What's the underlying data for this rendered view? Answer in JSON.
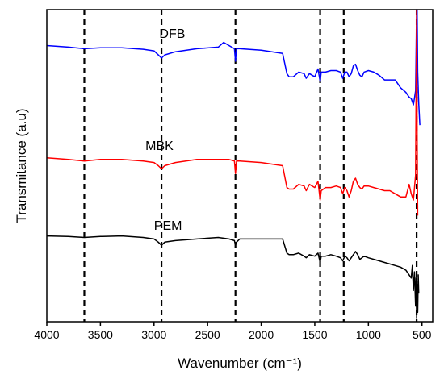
{
  "chart_data": {
    "type": "line",
    "title": "",
    "xlabel": "Wavenumber (cm⁻¹)",
    "ylabel": "Transmitance (a.u)",
    "xlim": [
      4000,
      400
    ],
    "x_reversed": true,
    "ylim": [
      0,
      100
    ],
    "y_ticks_shown": false,
    "grid": false,
    "legend": "none",
    "x_ticks": [
      4000,
      3500,
      3000,
      2500,
      2000,
      1500,
      1000,
      500
    ],
    "x_tick_labels": [
      "4000",
      "3500",
      "3000",
      "2500",
      "2000",
      "1500",
      "1000",
      "500"
    ],
    "reference_lines": [
      3650,
      2930,
      2240,
      1450,
      1230,
      550
    ],
    "series": [
      {
        "name": "DFB",
        "color": "#0000ff",
        "x": [
          4000,
          3800,
          3650,
          3500,
          3300,
          3100,
          3000,
          2960,
          2930,
          2900,
          2800,
          2600,
          2400,
          2350,
          2300,
          2250,
          2240,
          2230,
          2200,
          2000,
          1800,
          1760,
          1740,
          1700,
          1650,
          1600,
          1580,
          1550,
          1500,
          1470,
          1450,
          1440,
          1400,
          1350,
          1300,
          1260,
          1240,
          1220,
          1200,
          1180,
          1160,
          1140,
          1120,
          1100,
          1080,
          1060,
          1040,
          1000,
          950,
          900,
          850,
          800,
          750,
          700,
          650,
          620,
          600,
          580,
          560,
          550,
          545,
          540,
          530,
          520
        ],
        "y": [
          88.5,
          88.0,
          87.5,
          87.8,
          87.8,
          87.3,
          86.8,
          85.5,
          84.5,
          85.5,
          86.5,
          87.5,
          88.0,
          89.5,
          88.5,
          87.5,
          83.5,
          87.5,
          87.5,
          87.0,
          86.0,
          79.5,
          78.5,
          78.5,
          80.0,
          79.5,
          78.0,
          79.5,
          78.5,
          81.0,
          77.0,
          80.0,
          80.0,
          80.5,
          80.5,
          80.0,
          78.0,
          80.0,
          80.0,
          78.5,
          79.5,
          82.0,
          82.5,
          80.5,
          79.0,
          78.5,
          80.0,
          80.5,
          80.0,
          79.0,
          77.5,
          77.5,
          77.5,
          75.0,
          73.5,
          72.0,
          71.5,
          69.5,
          74.0,
          100.0,
          100.0,
          80.0,
          70.0,
          63.0
        ]
      },
      {
        "name": "MBK",
        "color": "#ff0000",
        "x": [
          4000,
          3800,
          3650,
          3500,
          3300,
          3100,
          3000,
          2960,
          2930,
          2900,
          2800,
          2600,
          2400,
          2300,
          2250,
          2240,
          2230,
          2200,
          2000,
          1800,
          1760,
          1740,
          1700,
          1650,
          1600,
          1580,
          1550,
          1500,
          1470,
          1450,
          1440,
          1400,
          1350,
          1300,
          1260,
          1240,
          1220,
          1200,
          1180,
          1160,
          1140,
          1120,
          1100,
          1080,
          1060,
          1040,
          1000,
          950,
          900,
          850,
          800,
          750,
          700,
          650,
          620,
          600,
          580,
          560,
          550,
          545,
          540
        ],
        "y": [
          52.5,
          52.0,
          51.5,
          52.0,
          52.0,
          51.5,
          51.0,
          50.0,
          49.0,
          50.0,
          51.0,
          52.0,
          52.0,
          52.0,
          51.5,
          47.5,
          51.5,
          51.5,
          51.0,
          50.0,
          43.0,
          42.5,
          42.5,
          44.0,
          43.5,
          42.0,
          44.0,
          43.0,
          45.0,
          39.0,
          42.0,
          43.0,
          43.0,
          43.5,
          43.0,
          41.0,
          43.0,
          42.0,
          40.0,
          42.0,
          45.0,
          46.0,
          44.0,
          43.0,
          42.5,
          43.5,
          43.5,
          43.0,
          42.5,
          42.0,
          42.0,
          41.0,
          40.0,
          40.0,
          44.0,
          41.0,
          39.0,
          47.0,
          100.0,
          60.0,
          34.0
        ]
      },
      {
        "name": "PEM",
        "color": "#000000",
        "x": [
          4000,
          3800,
          3650,
          3500,
          3300,
          3100,
          3000,
          2960,
          2930,
          2900,
          2800,
          2600,
          2400,
          2300,
          2250,
          2240,
          2230,
          2200,
          2000,
          1800,
          1760,
          1740,
          1700,
          1650,
          1600,
          1580,
          1550,
          1500,
          1470,
          1450,
          1440,
          1400,
          1350,
          1300,
          1260,
          1240,
          1220,
          1200,
          1180,
          1160,
          1140,
          1120,
          1100,
          1080,
          1060,
          1040,
          1000,
          950,
          900,
          850,
          800,
          750,
          700,
          650,
          620,
          600,
          590,
          580,
          570,
          560,
          555,
          550,
          545,
          540,
          535,
          530
        ],
        "y": [
          27.5,
          27.3,
          27.0,
          27.3,
          27.5,
          27.0,
          26.5,
          25.5,
          24.5,
          25.5,
          26.0,
          26.5,
          27.0,
          26.5,
          26.0,
          24.5,
          25.5,
          26.5,
          26.5,
          26.5,
          22.0,
          21.5,
          21.5,
          22.0,
          21.0,
          20.5,
          21.5,
          21.0,
          22.0,
          19.0,
          21.0,
          21.0,
          21.5,
          21.0,
          20.5,
          19.5,
          21.0,
          20.5,
          19.5,
          20.5,
          21.5,
          22.5,
          21.5,
          20.0,
          20.5,
          21.0,
          20.5,
          20.0,
          19.5,
          19.0,
          18.5,
          18.0,
          17.5,
          16.5,
          15.0,
          14.0,
          18.0,
          10.0,
          16.0,
          5.0,
          14.0,
          1.0,
          12.0,
          3.0,
          15.0,
          9.0
        ]
      }
    ]
  }
}
